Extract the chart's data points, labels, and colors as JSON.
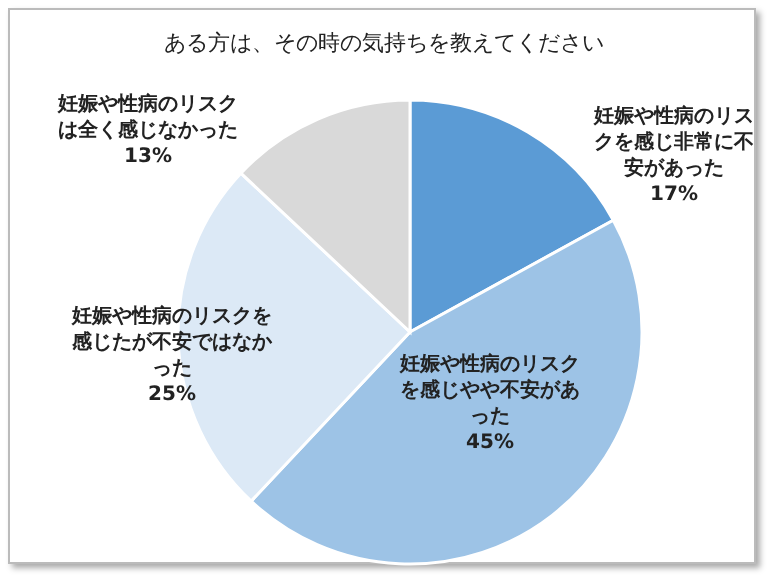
{
  "chart_data": {
    "type": "pie",
    "title": "ある方は、その時の気持ちを教えてください",
    "categories": [
      "妊娠や性病のリスクを感じ非常に不安があった",
      "妊娠や性病のリスクを感じやや不安があった",
      "妊娠や性病のリスクを感じたが不安ではなかった",
      "妊娠や性病のリスクは全く感じなかった"
    ],
    "values": [
      17,
      45,
      25,
      13
    ],
    "value_labels": [
      "17%",
      "45%",
      "25%",
      "13%"
    ],
    "colors": [
      "#5b9bd5",
      "#9dc3e6",
      "#dce9f6",
      "#d9d9d9"
    ],
    "legend": false
  }
}
